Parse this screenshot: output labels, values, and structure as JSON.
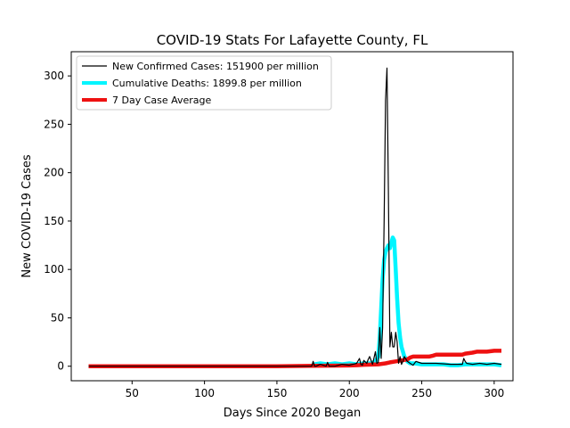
{
  "chart_data": {
    "type": "line",
    "title": "COVID-19 Stats For Lafayette County, FL",
    "xlabel": "Days Since 2020 Began",
    "ylabel": "New COVID-19 Cases",
    "xlim": [
      8,
      313
    ],
    "ylim": [
      -15,
      325
    ],
    "xticks": [
      50,
      100,
      150,
      200,
      250,
      300
    ],
    "yticks": [
      0,
      50,
      100,
      150,
      200,
      250,
      300
    ],
    "grid": false,
    "legend_position": "top-left",
    "series": [
      {
        "name": "New Confirmed Cases: 151900 per million",
        "color": "#000000",
        "x": [
          20,
          150,
          174,
          175,
          176,
          177,
          180,
          184,
          185,
          186,
          190,
          195,
          200,
          205,
          207,
          208,
          209,
          210,
          212,
          213,
          214,
          216,
          218,
          219,
          220,
          221,
          222,
          223,
          224,
          225,
          226,
          227,
          228,
          229,
          230,
          231,
          232,
          233,
          234,
          235,
          236,
          237,
          238,
          240,
          242,
          244,
          246,
          250,
          260,
          270,
          278,
          279,
          280,
          281,
          285,
          290,
          295,
          300,
          305
        ],
        "y": [
          0,
          0,
          0,
          5,
          0,
          0,
          2,
          0,
          4,
          0,
          0,
          2,
          1,
          3,
          8,
          2,
          1,
          6,
          3,
          7,
          10,
          2,
          15,
          3,
          4,
          40,
          8,
          40,
          150,
          275,
          308,
          180,
          20,
          35,
          20,
          20,
          35,
          25,
          3,
          10,
          2,
          5,
          10,
          5,
          3,
          1,
          5,
          3,
          3,
          2,
          2,
          8,
          5,
          3,
          2,
          3,
          2,
          3,
          2
        ]
      },
      {
        "name": "Cumulative Deaths: 1899.8 per million",
        "color": "#00f5ff",
        "x": [
          176,
          180,
          185,
          190,
          195,
          200,
          205,
          210,
          215,
          218,
          220,
          221,
          222,
          223,
          224,
          225,
          226,
          227,
          228,
          229,
          230,
          231,
          232,
          233,
          234,
          235,
          236,
          237,
          238,
          239,
          240,
          242,
          245,
          250,
          255,
          260,
          265,
          270,
          275,
          280,
          285,
          290,
          295,
          300,
          305
        ],
        "y": [
          2,
          3,
          2,
          3,
          2,
          3,
          2,
          3,
          3,
          5,
          10,
          30,
          60,
          90,
          110,
          118,
          122,
          125,
          122,
          128,
          133,
          130,
          100,
          70,
          45,
          30,
          20,
          15,
          10,
          8,
          5,
          3,
          3,
          2,
          2,
          2,
          2,
          1,
          1,
          2,
          2,
          2,
          2,
          2,
          1
        ]
      },
      {
        "name": "7 Day Case Average",
        "color": "#ee1111",
        "x": [
          20,
          150,
          175,
          200,
          205,
          210,
          220,
          225,
          228,
          232,
          236,
          240,
          242,
          244,
          246,
          248,
          255,
          258,
          260,
          270,
          278,
          280,
          285,
          288,
          295,
          300,
          305
        ],
        "y": [
          0,
          0,
          0.5,
          0.8,
          1,
          1.5,
          2,
          3,
          4,
          5,
          6,
          7,
          9,
          10,
          10,
          10,
          10,
          11,
          12,
          12,
          12,
          13,
          14,
          15,
          15,
          16,
          16
        ]
      }
    ]
  }
}
